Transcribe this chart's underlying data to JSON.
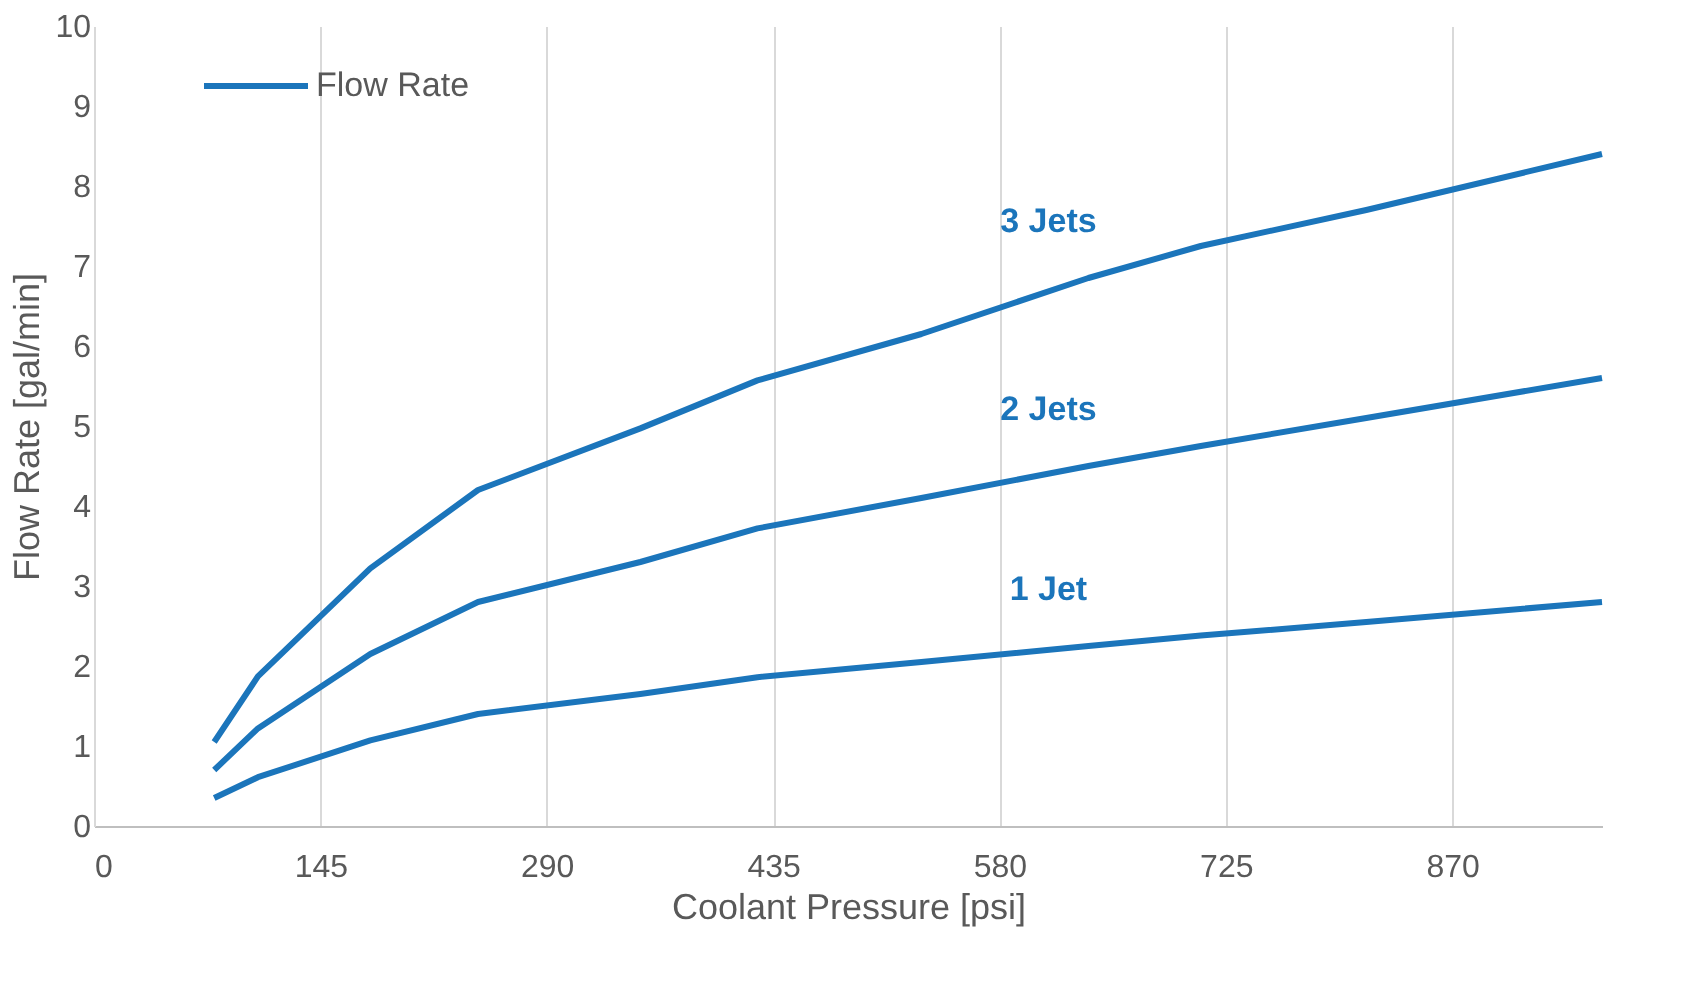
{
  "chart_data": {
    "type": "line",
    "xlabel": "Coolant Pressure [psi]",
    "ylabel": "Flow Rate [gal/min]",
    "xlim": [
      0,
      966
    ],
    "xticks": [
      0,
      145,
      290,
      435,
      580,
      725,
      870
    ],
    "ylim": [
      0,
      10
    ],
    "yticks": [
      0,
      1,
      2,
      3,
      4,
      5,
      6,
      7,
      8,
      9,
      10
    ],
    "grid": "x",
    "legend": "top left",
    "line_style": "solid",
    "series": [
      {
        "name": "Flow Rate",
        "color": "#1b75bb",
        "x": [
          77,
          105,
          177,
          246,
          350,
          425,
          530,
          637,
          709,
          815,
          966
        ],
        "values": [
          1.05,
          1.87,
          3.22,
          4.2,
          4.97,
          5.57,
          6.15,
          6.85,
          7.25,
          7.7,
          8.4
        ]
      },
      {
        "color": "#1b75bb",
        "x": [
          77,
          105,
          177,
          246,
          350,
          425,
          530,
          637,
          709,
          815,
          966
        ],
        "values": [
          0.7,
          1.22,
          2.15,
          2.8,
          3.3,
          3.72,
          4.1,
          4.5,
          4.75,
          5.1,
          5.6
        ]
      },
      {
        "color": "#1b75bb",
        "x": [
          77,
          105,
          177,
          246,
          350,
          425,
          530,
          637,
          709,
          815,
          966
        ],
        "values": [
          0.35,
          0.61,
          1.07,
          1.4,
          1.65,
          1.86,
          2.05,
          2.25,
          2.38,
          2.55,
          2.8
        ]
      }
    ],
    "annotations": [
      "3 Jets",
      "2 Jets",
      "1 Jet"
    ]
  }
}
